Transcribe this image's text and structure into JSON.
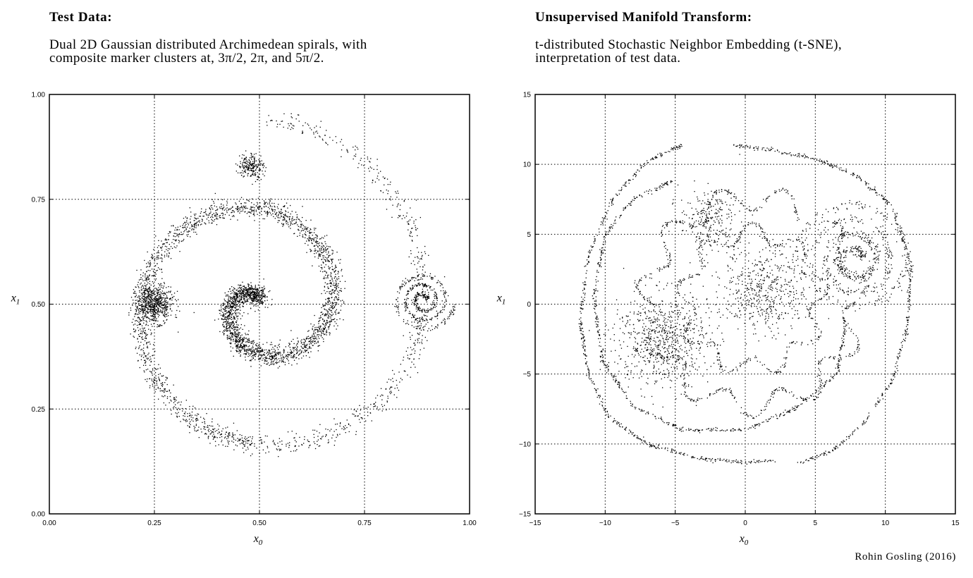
{
  "left_panel": {
    "title": "Test Data:",
    "description_lines": [
      "Dual 2D Gaussian distributed Archimedean spirals, with",
      "composite marker clusters at, 3π/2, 2π, and 5π/2."
    ]
  },
  "right_panel": {
    "title": "Unsupervised Manifold Transform:",
    "description_lines": [
      "t-distributed Stochastic Neighbor Embedding (t-SNE),",
      "interpretation of test data."
    ]
  },
  "credit": "Rohin Gosling (2016)",
  "chart_data": [
    {
      "type": "scatter",
      "xlabel": "x0",
      "ylabel": "x1",
      "xlim": [
        0.0,
        1.0
      ],
      "ylim": [
        0.0,
        1.0
      ],
      "xticks": [
        "0.00",
        "0.25",
        "0.50",
        "0.75",
        "1.00"
      ],
      "yticks": [
        "0.00",
        "0.25",
        "0.50",
        "0.75",
        "1.00"
      ],
      "grid": true,
      "marker_color": "#000000",
      "series": [
        {
          "kind": "archimedean-spiral",
          "center": [
            0.5,
            0.5
          ],
          "theta_range_rad": [
            1.57,
            14.1
          ],
          "radius_per_rad": 0.0345,
          "noise": 0.012,
          "count": 2200
        },
        {
          "kind": "archimedean-spiral",
          "center": [
            0.5,
            0.5
          ],
          "theta_range_rad": [
            4.71,
            14.1
          ],
          "radius_per_rad": 0.0345,
          "noise": 0.012,
          "count": 1700
        },
        {
          "kind": "gaussian-cluster",
          "center": [
            0.25,
            0.5
          ],
          "spread": 0.022,
          "count": 650
        },
        {
          "kind": "gaussian-cluster",
          "center": [
            0.48,
            0.83
          ],
          "spread": 0.015,
          "count": 220
        },
        {
          "kind": "spiral-marker",
          "center": [
            0.89,
            0.51
          ],
          "radius": 0.075,
          "turns": 3,
          "count": 450
        }
      ]
    },
    {
      "type": "scatter",
      "xlabel": "x0",
      "ylabel": "x1",
      "xlim": [
        -15,
        15
      ],
      "ylim": [
        -15,
        15
      ],
      "xticks": [
        "−15",
        "−10",
        "−5",
        "0",
        "5",
        "10",
        "15"
      ],
      "yticks": [
        "−15",
        "−10",
        "−5",
        "0",
        "5",
        "10",
        "15"
      ],
      "grid": true,
      "marker_color": "#000000",
      "series": [
        {
          "kind": "curve",
          "points": [
            [
              -4.5,
              11.4
            ],
            [
              -7,
              10.2
            ],
            [
              -9.5,
              7.5
            ],
            [
              -11.2,
              3.5
            ],
            [
              -11.8,
              -1
            ],
            [
              -11.2,
              -5
            ],
            [
              -9.8,
              -8
            ],
            [
              -7,
              -10
            ],
            [
              -3.5,
              -11
            ],
            [
              0,
              -11.3
            ],
            [
              2,
              -11.2
            ]
          ]
        },
        {
          "kind": "curve",
          "points": [
            [
              -1,
              11.4
            ],
            [
              2,
              11
            ],
            [
              5,
              10.4
            ],
            [
              8,
              9.2
            ],
            [
              10.5,
              7
            ],
            [
              11.8,
              3
            ],
            [
              11.6,
              -1.5
            ],
            [
              10.5,
              -5.5
            ],
            [
              8.5,
              -8.5
            ],
            [
              6.2,
              -10.5
            ],
            [
              3.8,
              -11.4
            ]
          ]
        },
        {
          "kind": "curve",
          "points": [
            [
              -4.8,
              9
            ],
            [
              -8,
              7.5
            ],
            [
              -10,
              5
            ],
            [
              -10.8,
              0.5
            ],
            [
              -10.2,
              -4
            ],
            [
              -8,
              -7.3
            ],
            [
              -4.5,
              -9
            ],
            [
              0,
              -9
            ],
            [
              3.5,
              -7.5
            ],
            [
              6.5,
              -5
            ],
            [
              7.2,
              -1.5
            ]
          ]
        },
        {
          "kind": "wavy-ring",
          "center": [
            0.5,
            0.2
          ],
          "radius": 7.4,
          "amplitude": 0.9,
          "waves": 11,
          "arc_deg": [
            60,
            410
          ]
        },
        {
          "kind": "wavy-ring",
          "center": [
            0.5,
            0.3
          ],
          "radius": 4.8,
          "amplitude": 0.7,
          "waves": 9,
          "arc_deg": [
            0,
            360
          ]
        },
        {
          "kind": "gaussian-cluster",
          "center": [
            -6.0,
            -2.5
          ],
          "spread": 1.7,
          "count": 700
        },
        {
          "kind": "gaussian-cluster",
          "center": [
            -2.5,
            6.0
          ],
          "spread": 1.1,
          "count": 260
        },
        {
          "kind": "gaussian-cluster",
          "center": [
            1.4,
            1.0
          ],
          "spread": 1.5,
          "count": 500
        },
        {
          "kind": "spiral-marker",
          "center": [
            7.8,
            3.2
          ],
          "radius": 4.2,
          "turns": 3.5,
          "count": 650
        }
      ]
    }
  ]
}
